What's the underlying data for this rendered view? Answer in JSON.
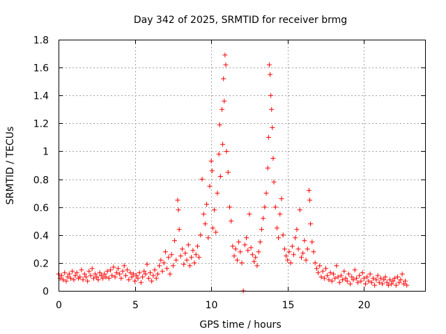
{
  "chart_data": {
    "type": "scatter",
    "title": "Day 342 of 2025, SRMTID for receiver brmg",
    "xlabel": "GPS time / hours",
    "ylabel": "SRMTID / TECUs",
    "xlim": [
      0,
      24
    ],
    "ylim": [
      0,
      1.8
    ],
    "x_ticks": [
      0,
      5,
      10,
      15,
      20
    ],
    "y_ticks": [
      0,
      0.2,
      0.4,
      0.6,
      0.8,
      1,
      1.2,
      1.4,
      1.6,
      1.8
    ],
    "x_tick_labels": [
      "0",
      "5",
      "10",
      "15",
      "20"
    ],
    "y_tick_labels": [
      "0",
      "0.2",
      "0.4",
      "0.6",
      "0.8",
      "1",
      "1.2",
      "1.4",
      "1.6",
      "1.8"
    ],
    "grid": true,
    "marker": "+",
    "color": "#ff0000",
    "series": [
      {
        "name": "SRMTID",
        "points": [
          [
            0.0,
            0.12
          ],
          [
            0.1,
            0.09
          ],
          [
            0.2,
            0.11
          ],
          [
            0.3,
            0.08
          ],
          [
            0.4,
            0.13
          ],
          [
            0.5,
            0.07
          ],
          [
            0.6,
            0.1
          ],
          [
            0.7,
            0.12
          ],
          [
            0.8,
            0.09
          ],
          [
            0.9,
            0.14
          ],
          [
            1.0,
            0.08
          ],
          [
            1.1,
            0.11
          ],
          [
            1.2,
            0.13
          ],
          [
            1.3,
            0.09
          ],
          [
            1.4,
            0.1
          ],
          [
            1.5,
            0.15
          ],
          [
            1.6,
            0.08
          ],
          [
            1.7,
            0.12
          ],
          [
            1.8,
            0.1
          ],
          [
            1.9,
            0.07
          ],
          [
            2.0,
            0.14
          ],
          [
            2.1,
            0.11
          ],
          [
            2.2,
            0.16
          ],
          [
            2.3,
            0.09
          ],
          [
            2.4,
            0.12
          ],
          [
            2.5,
            0.1
          ],
          [
            2.6,
            0.08
          ],
          [
            2.7,
            0.13
          ],
          [
            2.8,
            0.11
          ],
          [
            2.9,
            0.09
          ],
          [
            3.0,
            0.12
          ],
          [
            3.1,
            0.1
          ],
          [
            3.2,
            0.14
          ],
          [
            3.3,
            0.09
          ],
          [
            3.4,
            0.15
          ],
          [
            3.5,
            0.11
          ],
          [
            3.6,
            0.17
          ],
          [
            3.7,
            0.1
          ],
          [
            3.8,
            0.13
          ],
          [
            3.9,
            0.16
          ],
          [
            4.0,
            0.12
          ],
          [
            4.1,
            0.09
          ],
          [
            4.2,
            0.14
          ],
          [
            4.3,
            0.18
          ],
          [
            4.4,
            0.11
          ],
          [
            4.5,
            0.15
          ],
          [
            4.6,
            0.08
          ],
          [
            4.7,
            0.13
          ],
          [
            4.8,
            0.1
          ],
          [
            4.9,
            0.12
          ],
          [
            5.0,
            0.07
          ],
          [
            5.1,
            0.11
          ],
          [
            5.2,
            0.09
          ],
          [
            5.3,
            0.13
          ],
          [
            5.4,
            0.06
          ],
          [
            5.5,
            0.1
          ],
          [
            5.6,
            0.14
          ],
          [
            5.7,
            0.12
          ],
          [
            5.8,
            0.19
          ],
          [
            5.9,
            0.09
          ],
          [
            6.0,
            0.13
          ],
          [
            6.1,
            0.07
          ],
          [
            6.2,
            0.11
          ],
          [
            6.3,
            0.15
          ],
          [
            6.4,
            0.09
          ],
          [
            6.5,
            0.12
          ],
          [
            6.6,
            0.18
          ],
          [
            6.7,
            0.22
          ],
          [
            6.8,
            0.14
          ],
          [
            6.9,
            0.2
          ],
          [
            7.0,
            0.28
          ],
          [
            7.1,
            0.16
          ],
          [
            7.2,
            0.24
          ],
          [
            7.3,
            0.12
          ],
          [
            7.4,
            0.26
          ],
          [
            7.5,
            0.18
          ],
          [
            7.6,
            0.36
          ],
          [
            7.7,
            0.22
          ],
          [
            7.8,
            0.65
          ],
          [
            7.85,
            0.58
          ],
          [
            7.9,
            0.44
          ],
          [
            8.0,
            0.25
          ],
          [
            8.1,
            0.3
          ],
          [
            8.2,
            0.19
          ],
          [
            8.3,
            0.27
          ],
          [
            8.4,
            0.22
          ],
          [
            8.5,
            0.33
          ],
          [
            8.6,
            0.18
          ],
          [
            8.7,
            0.24
          ],
          [
            8.8,
            0.29
          ],
          [
            8.9,
            0.2
          ],
          [
            9.0,
            0.26
          ],
          [
            9.1,
            0.32
          ],
          [
            9.2,
            0.24
          ],
          [
            9.3,
            0.4
          ],
          [
            9.4,
            0.8
          ],
          [
            9.5,
            0.55
          ],
          [
            9.6,
            0.48
          ],
          [
            9.7,
            0.62
          ],
          [
            9.8,
            0.38
          ],
          [
            9.9,
            0.75
          ],
          [
            10.0,
            0.93
          ],
          [
            10.05,
            0.86
          ],
          [
            10.1,
            0.45
          ],
          [
            10.2,
            0.58
          ],
          [
            10.3,
            0.42
          ],
          [
            10.4,
            0.7
          ],
          [
            10.5,
            0.98
          ],
          [
            10.55,
            1.19
          ],
          [
            10.6,
            0.82
          ],
          [
            10.7,
            1.3
          ],
          [
            10.75,
            1.05
          ],
          [
            10.8,
            1.52
          ],
          [
            10.85,
            1.36
          ],
          [
            10.9,
            1.69
          ],
          [
            10.95,
            1.62
          ],
          [
            11.0,
            1.0
          ],
          [
            11.1,
            0.85
          ],
          [
            11.2,
            0.6
          ],
          [
            11.3,
            0.5
          ],
          [
            11.4,
            0.32
          ],
          [
            11.5,
            0.25
          ],
          [
            11.6,
            0.3
          ],
          [
            11.7,
            0.22
          ],
          [
            11.8,
            0.35
          ],
          [
            11.9,
            0.28
          ],
          [
            12.0,
            0.2
          ],
          [
            12.1,
            0.0
          ],
          [
            12.2,
            0.33
          ],
          [
            12.3,
            0.38
          ],
          [
            12.4,
            0.29
          ],
          [
            12.5,
            0.55
          ],
          [
            12.6,
            0.31
          ],
          [
            12.7,
            0.26
          ],
          [
            12.8,
            0.21
          ],
          [
            12.9,
            0.24
          ],
          [
            13.0,
            0.18
          ],
          [
            13.1,
            0.28
          ],
          [
            13.2,
            0.35
          ],
          [
            13.3,
            0.44
          ],
          [
            13.4,
            0.52
          ],
          [
            13.5,
            0.6
          ],
          [
            13.6,
            0.7
          ],
          [
            13.7,
            0.88
          ],
          [
            13.75,
            1.1
          ],
          [
            13.8,
            1.62
          ],
          [
            13.85,
            1.55
          ],
          [
            13.9,
            1.4
          ],
          [
            13.95,
            1.3
          ],
          [
            14.0,
            1.17
          ],
          [
            14.05,
            0.95
          ],
          [
            14.1,
            0.78
          ],
          [
            14.2,
            0.6
          ],
          [
            14.3,
            0.45
          ],
          [
            14.4,
            0.38
          ],
          [
            14.5,
            0.55
          ],
          [
            14.6,
            0.66
          ],
          [
            14.7,
            0.4
          ],
          [
            14.8,
            0.3
          ],
          [
            14.9,
            0.25
          ],
          [
            15.0,
            0.22
          ],
          [
            15.1,
            0.28
          ],
          [
            15.2,
            0.2
          ],
          [
            15.3,
            0.32
          ],
          [
            15.4,
            0.26
          ],
          [
            15.5,
            0.38
          ],
          [
            15.6,
            0.44
          ],
          [
            15.7,
            0.3
          ],
          [
            15.8,
            0.58
          ],
          [
            15.9,
            0.24
          ],
          [
            16.0,
            0.27
          ],
          [
            16.1,
            0.36
          ],
          [
            16.2,
            0.22
          ],
          [
            16.3,
            0.3
          ],
          [
            16.4,
            0.72
          ],
          [
            16.45,
            0.65
          ],
          [
            16.5,
            0.48
          ],
          [
            16.6,
            0.35
          ],
          [
            16.7,
            0.28
          ],
          [
            16.8,
            0.2
          ],
          [
            16.9,
            0.16
          ],
          [
            17.0,
            0.13
          ],
          [
            17.1,
            0.18
          ],
          [
            17.2,
            0.1
          ],
          [
            17.3,
            0.14
          ],
          [
            17.4,
            0.09
          ],
          [
            17.5,
            0.16
          ],
          [
            17.6,
            0.11
          ],
          [
            17.7,
            0.08
          ],
          [
            17.8,
            0.13
          ],
          [
            17.9,
            0.07
          ],
          [
            18.0,
            0.12
          ],
          [
            18.1,
            0.09
          ],
          [
            18.2,
            0.18
          ],
          [
            18.3,
            0.1
          ],
          [
            18.4,
            0.06
          ],
          [
            18.5,
            0.11
          ],
          [
            18.6,
            0.08
          ],
          [
            18.7,
            0.14
          ],
          [
            18.8,
            0.09
          ],
          [
            18.9,
            0.07
          ],
          [
            19.0,
            0.12
          ],
          [
            19.1,
            0.05
          ],
          [
            19.2,
            0.1
          ],
          [
            19.3,
            0.08
          ],
          [
            19.4,
            0.15
          ],
          [
            19.5,
            0.09
          ],
          [
            19.6,
            0.06
          ],
          [
            19.7,
            0.11
          ],
          [
            19.8,
            0.07
          ],
          [
            19.9,
            0.13
          ],
          [
            20.0,
            0.09
          ],
          [
            20.1,
            0.05
          ],
          [
            20.2,
            0.1
          ],
          [
            20.3,
            0.07
          ],
          [
            20.4,
            0.12
          ],
          [
            20.5,
            0.06
          ],
          [
            20.6,
            0.09
          ],
          [
            20.7,
            0.04
          ],
          [
            20.8,
            0.08
          ],
          [
            20.9,
            0.11
          ],
          [
            21.0,
            0.06
          ],
          [
            21.1,
            0.09
          ],
          [
            21.2,
            0.05
          ],
          [
            21.3,
            0.08
          ],
          [
            21.4,
            0.1
          ],
          [
            21.5,
            0.06
          ],
          [
            21.6,
            0.04
          ],
          [
            21.7,
            0.08
          ],
          [
            21.8,
            0.05
          ],
          [
            21.9,
            0.07
          ],
          [
            22.0,
            0.09
          ],
          [
            22.1,
            0.04
          ],
          [
            22.2,
            0.1
          ],
          [
            22.3,
            0.06
          ],
          [
            22.4,
            0.08
          ],
          [
            22.5,
            0.12
          ],
          [
            22.6,
            0.05
          ],
          [
            22.7,
            0.07
          ],
          [
            22.8,
            0.04
          ]
        ]
      }
    ]
  }
}
